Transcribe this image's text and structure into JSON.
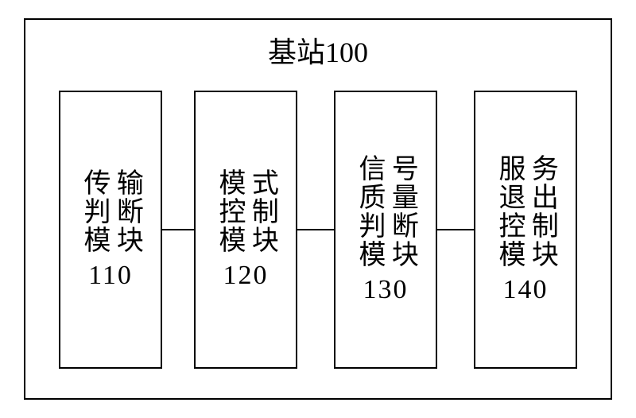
{
  "diagram": {
    "type": "block-diagram",
    "background_color": "#ffffff",
    "border_color": "#000000",
    "border_width": 2,
    "text_color": "#000000",
    "font_family": "SimSun",
    "title": "基站100",
    "title_fontsize": 36,
    "module_fontsize": 34,
    "number_fontsize": 34,
    "outer_width": 740,
    "outer_height": 480,
    "module_width": 130,
    "module_height": 350,
    "connector_color": "#000000",
    "modules": [
      {
        "id": "module-110",
        "col1": "传判模",
        "col2": "输断块",
        "number": "110"
      },
      {
        "id": "module-120",
        "col1": "模控模",
        "col2": "式制块",
        "number": "120"
      },
      {
        "id": "module-130",
        "col1": "信质判模",
        "col2": "号量断块",
        "number": "130"
      },
      {
        "id": "module-140",
        "col1": "服退控模",
        "col2": "务出制块",
        "number": "140"
      }
    ]
  }
}
